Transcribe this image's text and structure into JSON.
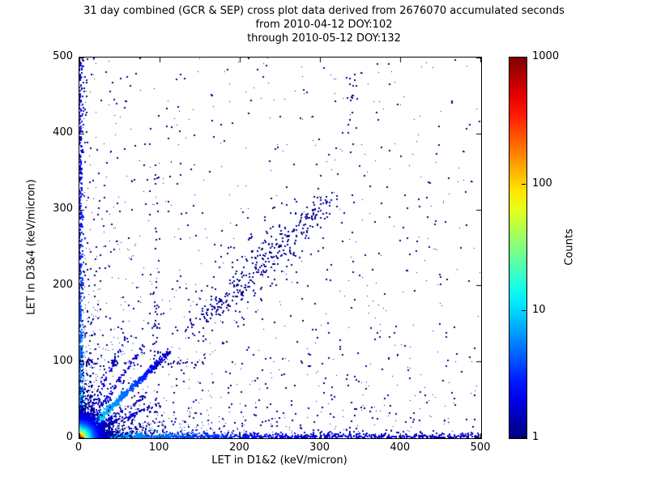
{
  "chart_data": {
    "type": "scatter",
    "title": "31 day combined (GCR & SEP) cross plot data derived from 2676070 accumulated seconds",
    "subtitle_from": "from 2010-04-12 DOY:102",
    "subtitle_through": "through 2010-05-12 DOY:132",
    "xlabel": "LET in D1&2 (keV/micron)",
    "ylabel": "LET in D3&4 (keV/micron)",
    "xlim": [
      0,
      500
    ],
    "ylim": [
      0,
      500
    ],
    "xticks": [
      0,
      100,
      200,
      300,
      400,
      500
    ],
    "yticks": [
      0,
      100,
      200,
      300,
      400,
      500
    ],
    "grid": false,
    "legend": false,
    "colorbar": {
      "label": "Counts",
      "scale": "log",
      "min": 1,
      "max": 1000,
      "ticks": [
        1000,
        100,
        10,
        1
      ],
      "colormap": "jet",
      "color_min": "#000080",
      "color_max": "#800000"
    },
    "base_point_color": "#000088",
    "density_features": [
      {
        "name": "background-scatter",
        "type": "bg",
        "n": 1400,
        "power": 2.6,
        "color": "#000088"
      },
      {
        "name": "uniform-sparse-counts",
        "type": "uniform",
        "n": 230,
        "color": "#000088"
      },
      {
        "name": "mid-diagonal-halo",
        "type": "diag",
        "n": 120,
        "tmin": 150,
        "tmax": 300,
        "sigma": 22,
        "color": "#000088"
      },
      {
        "name": "mid-diagonal-band",
        "type": "diag",
        "n": 270,
        "tmin": 135,
        "tmax": 315,
        "sigma": 8,
        "color": "#000099"
      },
      {
        "name": "left-axis-fan",
        "type": "exp2",
        "n": 380,
        "sx": 18,
        "sy": 55,
        "color": "#0005a0"
      },
      {
        "name": "bottom-axis-fan",
        "type": "exp2",
        "n": 430,
        "sx": 70,
        "sy": 16,
        "color": "#0005a0"
      },
      {
        "name": "left-edge-column",
        "type": "edge-left",
        "n": 650,
        "xscale": 1.8,
        "ypower": 2.0,
        "vbase": 0.3,
        "vdecay": 260
      },
      {
        "name": "bottom-edge-row",
        "type": "edge-bottom",
        "n": 950,
        "yscale": 1.8,
        "xpower": 1.7,
        "vbase": 0.32,
        "vdecay": 190
      },
      {
        "name": "fan-ray-slope-0.45",
        "type": "ray",
        "n": 110,
        "slope": 0.45,
        "tmax": 95,
        "sigma": 1.3,
        "power": 1.3,
        "v0": 0.14,
        "vk": 0.001
      },
      {
        "name": "fan-ray-slope-0.65",
        "type": "ray",
        "n": 90,
        "slope": 0.65,
        "tmax": 85,
        "sigma": 1.3,
        "power": 1.3,
        "v0": 0.13,
        "vk": 0.001
      },
      {
        "name": "fan-ray-slope-1.5",
        "type": "ray",
        "n": 100,
        "slope": 1.5,
        "tmax": 80,
        "sigma": 1.3,
        "power": 1.3,
        "v0": 0.14,
        "vk": 0.001
      },
      {
        "name": "fan-ray-slope-2.3",
        "type": "ray",
        "n": 80,
        "slope": 2.3,
        "tmax": 60,
        "sigma": 1.3,
        "power": 1.3,
        "v0": 0.13,
        "vk": 0.001
      },
      {
        "name": "main-diagonal-streak",
        "type": "ray",
        "n": 780,
        "slope": 1.0,
        "tmax": 112,
        "sigma": 1.6,
        "power": 1.4,
        "v0": 0.42,
        "vk": 0.0033
      },
      {
        "name": "upper-cluster-x340",
        "type": "blob",
        "n": 26,
        "cx": 340,
        "cy": 450,
        "sx": 5,
        "sy": 45,
        "color": "#000088"
      },
      {
        "name": "vertical-line-x95",
        "type": "blob",
        "n": 45,
        "cx": 96,
        "cy": 165,
        "sx": 2.5,
        "sy": 70,
        "color": "#000090"
      },
      {
        "name": "upper-left-column-sparse",
        "type": "blob",
        "n": 30,
        "cx": 3,
        "cy": 430,
        "sx": 3,
        "sy": 60,
        "color": "#000088"
      },
      {
        "name": "horizontal-line-y97",
        "type": "hline",
        "n": 55,
        "y": 97,
        "sigma": 2,
        "xmax": 160,
        "power": 1.4,
        "color": "#000090"
      },
      {
        "name": "hot-core-origin",
        "type": "core",
        "n": 4200,
        "scale": 9,
        "heat_decay": 12
      }
    ]
  }
}
